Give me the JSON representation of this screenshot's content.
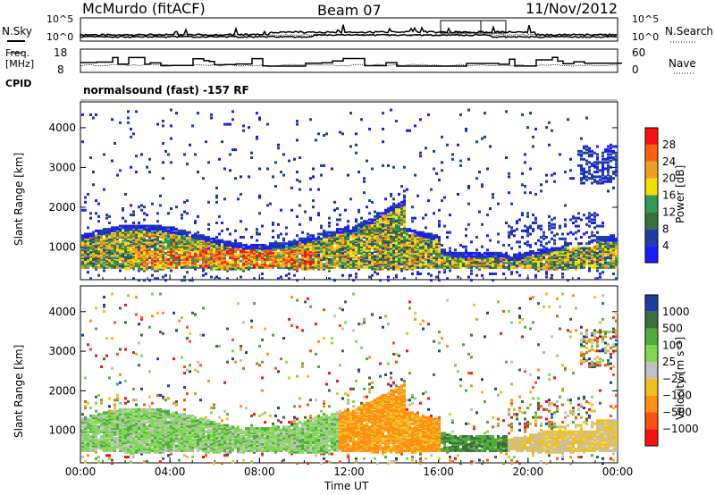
{
  "header": {
    "station": "McMurdo (fitACF)",
    "beam": "Beam 07",
    "date": "11/Nov/2012"
  },
  "noise_panel": {
    "left_label": "N.Sky",
    "right_label": "N.Search",
    "left_ticks": [
      "10^5",
      "10^0"
    ],
    "right_ticks": [
      "10^5",
      "10^0"
    ]
  },
  "freq_panel": {
    "left_label_line1": "Freq.",
    "left_label_line2": "[MHz]",
    "right_label": "Nave",
    "left_ticks": [
      "18",
      "8"
    ],
    "right_ticks": [
      "60",
      "0"
    ]
  },
  "cpid": {
    "label": "CPID",
    "text": "normalsound (fast) -157 RF"
  },
  "colors": {
    "power_scale": [
      "#1a1aff",
      "#1e3fa0",
      "#3c6e3c",
      "#2f9a56",
      "#f0e000",
      "#f0a020",
      "#ff6010",
      "#ff1010"
    ],
    "velocity_scale": [
      "#1e3fa0",
      "#3c6e3c",
      "#4fae3a",
      "#7fd850",
      "#c0c0c0",
      "#f0c020",
      "#ff9010",
      "#ff5010",
      "#ff1010"
    ]
  },
  "chart_data": [
    {
      "type": "heatmap",
      "name": "power",
      "ylabel": "Slant Range [km]",
      "yticks": [
        1000,
        2000,
        3000,
        4000
      ],
      "ylim": [
        180,
        4650
      ],
      "xticks": [
        "00:00",
        "04:00",
        "08:00",
        "12:00",
        "16:00",
        "20:00",
        "00:00"
      ],
      "xlim_hours": [
        0,
        24
      ],
      "colorbar_label": "Power [dB]",
      "colorbar_ticks": [
        "4",
        "8",
        "12",
        "16",
        "20",
        "24",
        "28"
      ],
      "grid": false
    },
    {
      "type": "heatmap",
      "name": "velocity",
      "ylabel": "Slant Range [km]",
      "yticks": [
        1000,
        2000,
        3000,
        4000
      ],
      "ylim": [
        180,
        4650
      ],
      "xticks": [
        "00:00",
        "04:00",
        "08:00",
        "12:00",
        "16:00",
        "20:00",
        "00:00"
      ],
      "xlim_hours": [
        0,
        24
      ],
      "xlabel": "Time UT",
      "colorbar_label": "Velocity [m s⁻¹]",
      "colorbar_ticks": [
        "1000",
        "500",
        "100",
        "25",
        "−25",
        "−100",
        "−500",
        "−1000"
      ],
      "grid": false
    }
  ]
}
